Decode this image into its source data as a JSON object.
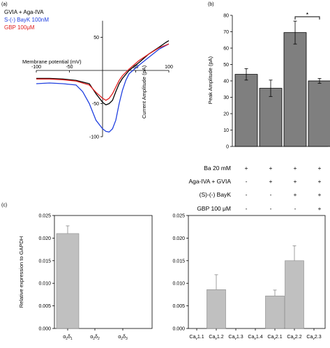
{
  "panels": {
    "a": "(a)",
    "b": "(b)",
    "c": "(c)"
  },
  "colors": {
    "black_trace": "#000000",
    "blue_trace": "#2040e0",
    "red_trace": "#e02020",
    "bar_dark": "#7f7f7f",
    "bar_light": "#c0c0c0"
  },
  "chart_data": [
    {
      "panel": "(a)",
      "type": "line",
      "xlabel": "Membrane potential (mV)",
      "ylabel": "Current Amplitude (pA)",
      "xlim": [
        -100,
        100
      ],
      "ylim": [
        -100,
        50
      ],
      "x_ticks": [
        "-100",
        "-50",
        "50",
        "100"
      ],
      "y_ticks": [
        "50",
        "-50",
        "-100"
      ],
      "series": [
        {
          "name": "GVIA + Aga-IVA",
          "color": "#000000",
          "points": [
            [
              -100,
              -12
            ],
            [
              -80,
              -12
            ],
            [
              -60,
              -13
            ],
            [
              -40,
              -15
            ],
            [
              -20,
              -20
            ],
            [
              -10,
              -35
            ],
            [
              0,
              -48
            ],
            [
              5,
              -52
            ],
            [
              10,
              -50
            ],
            [
              15,
              -45
            ],
            [
              20,
              -32
            ],
            [
              25,
              -20
            ],
            [
              30,
              -12
            ],
            [
              40,
              0
            ],
            [
              55,
              12
            ],
            [
              70,
              25
            ],
            [
              85,
              35
            ],
            [
              95,
              42
            ],
            [
              100,
              45
            ]
          ]
        },
        {
          "name": "S-(-) BayK 100nM",
          "color": "#2040e0",
          "points": [
            [
              -100,
              -20
            ],
            [
              -80,
              -19
            ],
            [
              -60,
              -20
            ],
            [
              -40,
              -22
            ],
            [
              -30,
              -32
            ],
            [
              -20,
              -50
            ],
            [
              -10,
              -75
            ],
            [
              0,
              -88
            ],
            [
              5,
              -92
            ],
            [
              10,
              -93
            ],
            [
              15,
              -88
            ],
            [
              20,
              -75
            ],
            [
              25,
              -50
            ],
            [
              30,
              -30
            ],
            [
              35,
              -15
            ],
            [
              40,
              -5
            ],
            [
              55,
              8
            ],
            [
              70,
              20
            ],
            [
              85,
              32
            ],
            [
              100,
              40
            ]
          ]
        },
        {
          "name": "GBP 100μM",
          "color": "#e02020",
          "points": [
            [
              -100,
              -13
            ],
            [
              -80,
              -13
            ],
            [
              -60,
              -14
            ],
            [
              -40,
              -16
            ],
            [
              -20,
              -22
            ],
            [
              -10,
              -33
            ],
            [
              0,
              -42
            ],
            [
              5,
              -45
            ],
            [
              10,
              -42
            ],
            [
              15,
              -35
            ],
            [
              20,
              -25
            ],
            [
              25,
              -15
            ],
            [
              30,
              -8
            ],
            [
              40,
              2
            ],
            [
              55,
              15
            ],
            [
              70,
              25
            ],
            [
              85,
              34
            ],
            [
              100,
              40
            ]
          ]
        }
      ]
    },
    {
      "panel": "(b)",
      "type": "bar",
      "ylabel": "Peak Amplitude (pA)",
      "ylim": [
        0,
        80
      ],
      "y_ticks": [
        "0",
        "10",
        "20",
        "30",
        "40",
        "50",
        "60",
        "70",
        "80"
      ],
      "values": [
        44,
        35.5,
        69.5,
        40
      ],
      "errors": [
        3.5,
        5,
        7,
        1.5
      ],
      "significance": "*",
      "conditions": [
        {
          "label": "Ba 20 mM",
          "marks": [
            "+",
            "+",
            "+",
            "+"
          ]
        },
        {
          "label": "Aga-IVA + GVIA",
          "marks": [
            "-",
            "+",
            "+",
            "+"
          ]
        },
        {
          "label": "(S)-(-) BayK",
          "marks": [
            "-",
            "-",
            "+",
            "+"
          ]
        },
        {
          "label": "GBP 100 μM",
          "marks": [
            "-",
            "-",
            "-",
            "+"
          ]
        }
      ]
    },
    {
      "panel": "(c)",
      "type": "bar",
      "ylabel": "Relative expression to GAPDH",
      "ylim": [
        0,
        0.025
      ],
      "y_ticks": [
        "0.000",
        "0.005",
        "0.010",
        "0.015",
        "0.020",
        "0.025"
      ],
      "categories": [
        "α2δ1",
        "α2δ2",
        "α2δ3"
      ],
      "values": [
        0.021,
        0,
        0
      ],
      "errors": [
        0.0017,
        0,
        0
      ]
    },
    {
      "panel": "(c)",
      "type": "bar",
      "ylim": [
        0,
        0.025
      ],
      "y_ticks": [
        "0.000",
        "0.005",
        "0.010",
        "0.015",
        "0.020",
        "0.025"
      ],
      "categories": [
        "Cav1.1",
        "Cav1.2",
        "Cav1.3",
        "Cav1.4",
        "Cav2.1",
        "Cav2.2",
        "Cav2.3"
      ],
      "values": [
        0,
        0.0086,
        0,
        0,
        0.0072,
        0.015,
        0
      ],
      "errors": [
        0,
        0.0033,
        0,
        0,
        0.0013,
        0.0033,
        0
      ]
    }
  ]
}
